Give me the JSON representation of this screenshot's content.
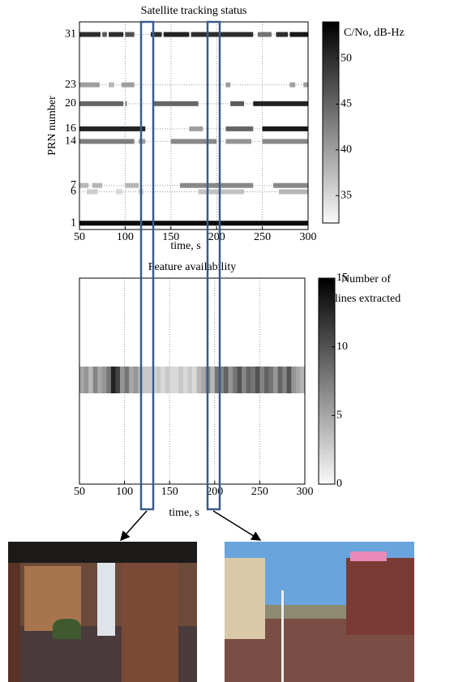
{
  "chart_data": [
    {
      "type": "timeline",
      "title": "Satellite tracking status",
      "xlabel": "time, s",
      "ylabel": "PRN number",
      "xlim": [
        50,
        300
      ],
      "xticks": [
        50,
        100,
        150,
        200,
        250,
        300
      ],
      "ylim": [
        0,
        33
      ],
      "yticks": [
        1,
        6,
        7,
        14,
        16,
        20,
        23,
        31
      ],
      "grid": true,
      "colorbar": {
        "label": "C/No, dB-Hz",
        "lim": [
          32,
          54
        ],
        "ticks": [
          35,
          40,
          45,
          50
        ]
      },
      "tracks": [
        {
          "prn": 31,
          "segments": [
            [
              50,
              73,
              50
            ],
            [
              75,
              80,
              46
            ],
            [
              82,
              98,
              50
            ],
            [
              100,
              110,
              47
            ],
            [
              128,
              140,
              50
            ],
            [
              142,
              170,
              51
            ],
            [
              172,
              240,
              50
            ],
            [
              245,
              260,
              44
            ],
            [
              265,
              278,
              50
            ],
            [
              280,
              300,
              52
            ]
          ]
        },
        {
          "prn": 23,
          "segments": [
            [
              50,
              72,
              40
            ],
            [
              82,
              88,
              38
            ],
            [
              96,
              110,
              40
            ],
            [
              210,
              215,
              40
            ],
            [
              280,
              286,
              40
            ],
            [
              295,
              300,
              40
            ]
          ]
        },
        {
          "prn": 20,
          "segments": [
            [
              50,
              98,
              45
            ],
            [
              100,
              102,
              42
            ],
            [
              130,
              180,
              45
            ],
            [
              215,
              230,
              46
            ],
            [
              240,
              300,
              51
            ]
          ]
        },
        {
          "prn": 16,
          "segments": [
            [
              50,
              122,
              51
            ],
            [
              170,
              185,
              40
            ],
            [
              210,
              240,
              45
            ],
            [
              250,
              300,
              52
            ]
          ]
        },
        {
          "prn": 14,
          "segments": [
            [
              50,
              110,
              43
            ],
            [
              115,
              122,
              40
            ],
            [
              150,
              200,
              42
            ],
            [
              210,
              238,
              41
            ],
            [
              250,
              300,
              42
            ]
          ]
        },
        {
          "prn": 7,
          "segments": [
            [
              50,
              60,
              38
            ],
            [
              64,
              75,
              38
            ],
            [
              100,
              115,
              38
            ],
            [
              160,
              240,
              42
            ],
            [
              262,
              300,
              42
            ]
          ]
        },
        {
          "prn": 6,
          "segments": [
            [
              58,
              70,
              36
            ],
            [
              90,
              97,
              35
            ],
            [
              115,
              120,
              36
            ],
            [
              180,
              230,
              37
            ],
            [
              268,
              300,
              38
            ]
          ]
        },
        {
          "prn": 1,
          "segments": [
            [
              50,
              300,
              53
            ]
          ]
        }
      ]
    },
    {
      "type": "heatmap",
      "title": "Feature availability",
      "xlabel": "time, s",
      "xlim": [
        50,
        300
      ],
      "xticks": [
        50,
        100,
        150,
        200,
        250,
        300
      ],
      "grid": true,
      "colorbar": {
        "label": [
          "Number of",
          "lines extracted"
        ],
        "lim": [
          0,
          15
        ],
        "ticks": [
          0,
          5,
          10,
          15
        ]
      },
      "x": [
        50,
        55,
        60,
        65,
        70,
        75,
        80,
        85,
        90,
        95,
        100,
        105,
        110,
        115,
        120,
        125,
        130,
        135,
        140,
        145,
        150,
        155,
        160,
        165,
        170,
        175,
        180,
        185,
        190,
        195,
        200,
        205,
        210,
        215,
        220,
        225,
        230,
        235,
        240,
        245,
        250,
        255,
        260,
        265,
        270,
        275,
        280,
        285,
        290,
        295
      ],
      "values": [
        5,
        6,
        4,
        7,
        5,
        6,
        8,
        13,
        11,
        6,
        8,
        5,
        6,
        4,
        3,
        3,
        2,
        3,
        2,
        3,
        2,
        2,
        3,
        2,
        3,
        2,
        4,
        5,
        7,
        4,
        8,
        7,
        9,
        6,
        8,
        10,
        7,
        9,
        8,
        10,
        7,
        9,
        8,
        6,
        9,
        7,
        10,
        6,
        5,
        4
      ]
    }
  ]
}
